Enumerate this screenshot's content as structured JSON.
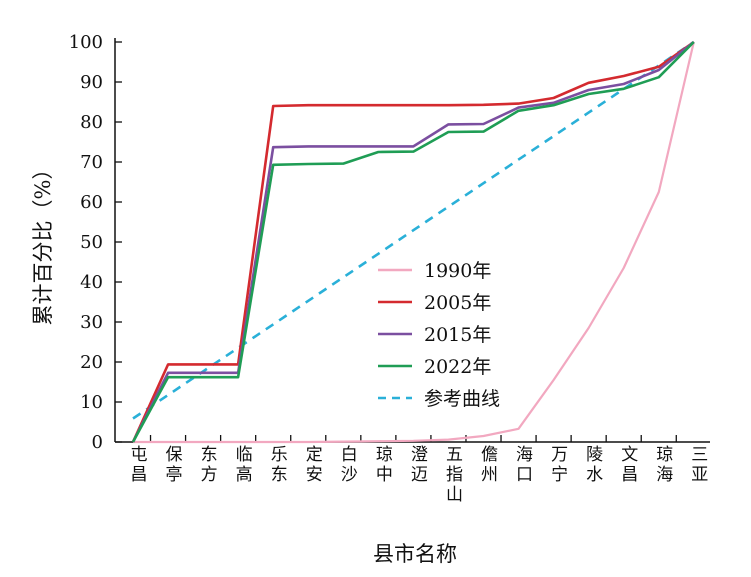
{
  "chart_data": {
    "type": "line",
    "xlabel": "县市名称",
    "ylabel": "累计百分比（%）",
    "ylim": [
      0,
      100
    ],
    "yticks": [
      0,
      10,
      20,
      30,
      40,
      50,
      60,
      70,
      80,
      90,
      100
    ],
    "categories": [
      "屯昌",
      "保亭",
      "东方",
      "临高",
      "乐东",
      "定安",
      "白沙",
      "琼中",
      "澄迈",
      "五指山",
      "儋州",
      "海口",
      "万宁",
      "陵水",
      "文昌",
      "琼海",
      "三亚"
    ],
    "step_lines": true,
    "legend_position": "center-right",
    "series": [
      {
        "name": "1990年",
        "color": "#f2a8c0",
        "dashed": false,
        "values": [
          0,
          0,
          0,
          0,
          0,
          0,
          0.1,
          0.2,
          0.3,
          0.6,
          1.5,
          3.3,
          15.5,
          28.5,
          43.5,
          62.5,
          100
        ]
      },
      {
        "name": "2005年",
        "color": "#d42a2f",
        "dashed": false,
        "values": [
          0,
          19.4,
          19.4,
          19.4,
          84.0,
          84.2,
          84.2,
          84.2,
          84.2,
          84.2,
          84.3,
          84.6,
          86.0,
          89.8,
          91.5,
          93.8,
          100
        ]
      },
      {
        "name": "2015年",
        "color": "#7b4fa0",
        "dashed": false,
        "values": [
          0,
          17.3,
          17.3,
          17.3,
          73.7,
          73.9,
          73.9,
          73.9,
          73.9,
          79.4,
          79.5,
          83.6,
          84.8,
          88.0,
          89.5,
          93.0,
          100
        ]
      },
      {
        "name": "2022年",
        "color": "#1f9d55",
        "dashed": false,
        "values": [
          0,
          16.2,
          16.2,
          16.2,
          69.3,
          69.5,
          69.6,
          72.5,
          72.6,
          77.5,
          77.6,
          82.8,
          84.2,
          87.0,
          88.3,
          91.2,
          100
        ]
      },
      {
        "name": "参考曲线",
        "color": "#2ab0d8",
        "dashed": true,
        "values": [
          5.88,
          11.76,
          17.65,
          23.53,
          29.41,
          35.29,
          41.18,
          47.06,
          52.94,
          58.82,
          64.71,
          70.59,
          76.47,
          82.35,
          88.24,
          94.12,
          100
        ]
      }
    ]
  }
}
